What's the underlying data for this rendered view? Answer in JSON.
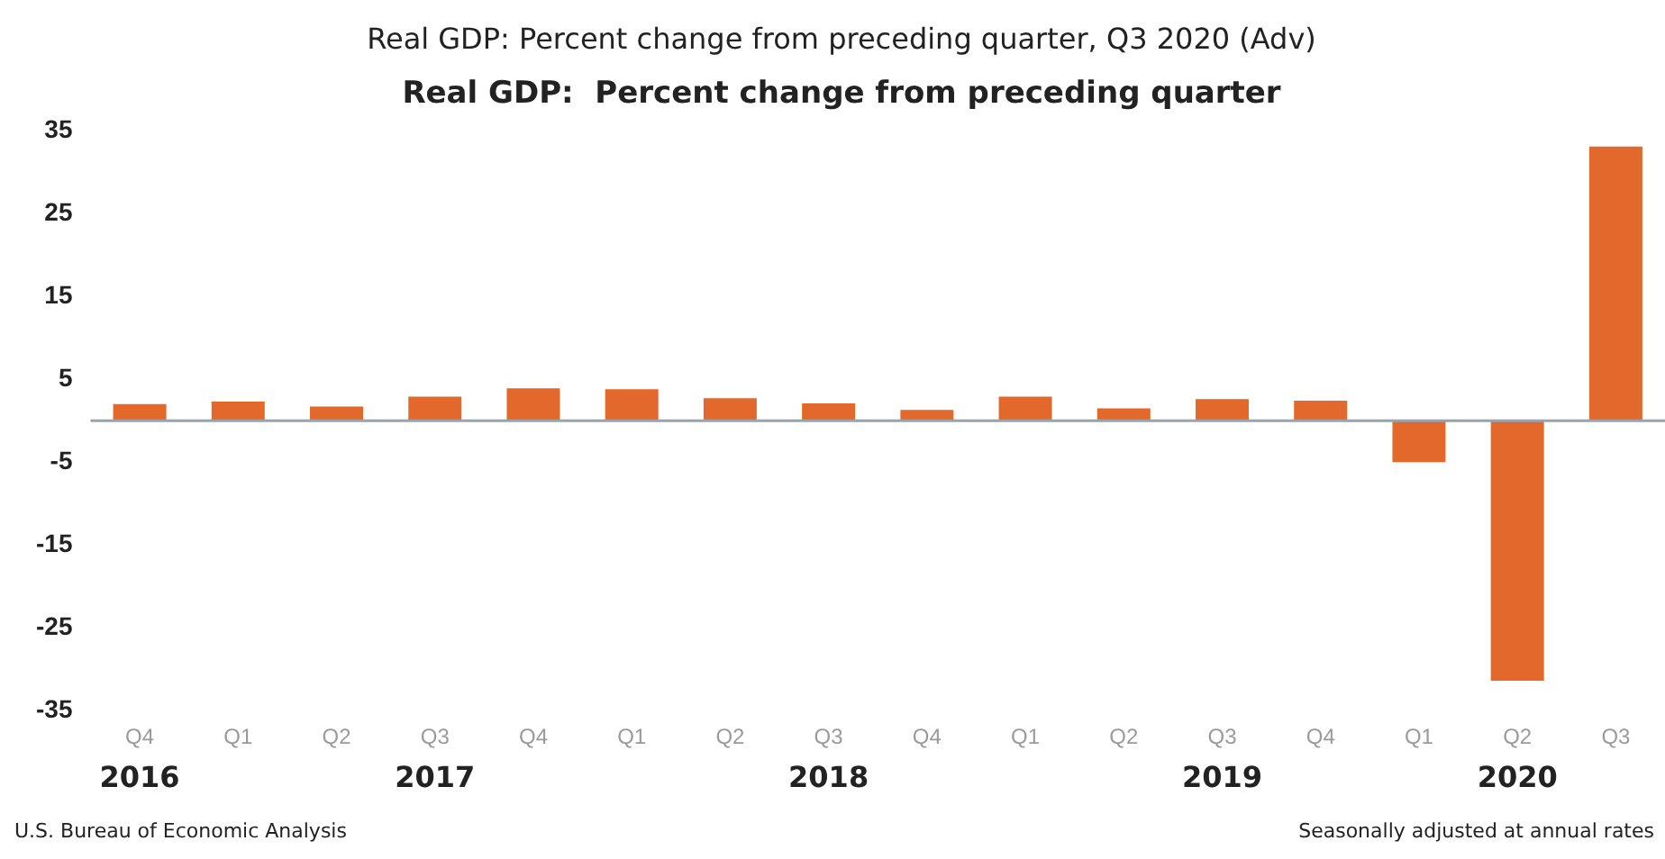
{
  "chart_data": {
    "type": "bar",
    "title": "Real GDP: Percent change from preceding quarter, Q3 2020 (Adv)",
    "subtitle": "Real GDP:  Percent change from preceding quarter",
    "categories": [
      "Q4",
      "Q1",
      "Q2",
      "Q3",
      "Q4",
      "Q1",
      "Q2",
      "Q3",
      "Q4",
      "Q1",
      "Q2",
      "Q3",
      "Q4",
      "Q1",
      "Q2",
      "Q3"
    ],
    "values": [
      2.0,
      2.3,
      1.7,
      2.9,
      3.9,
      3.8,
      2.7,
      2.1,
      1.3,
      2.9,
      1.5,
      2.6,
      2.4,
      -5.0,
      -31.4,
      33.1
    ],
    "color": "#e2692b",
    "ylim": [
      -35,
      35
    ],
    "yticks": [
      -35,
      -25,
      -15,
      -5,
      5,
      15,
      25,
      35
    ],
    "grid": false,
    "legend": false,
    "annotations": [
      "2016",
      "2017",
      "2018",
      "2019",
      "2020",
      "U.S. Bureau of Economic Analysis",
      "Seasonally adjusted at annual rates"
    ]
  }
}
